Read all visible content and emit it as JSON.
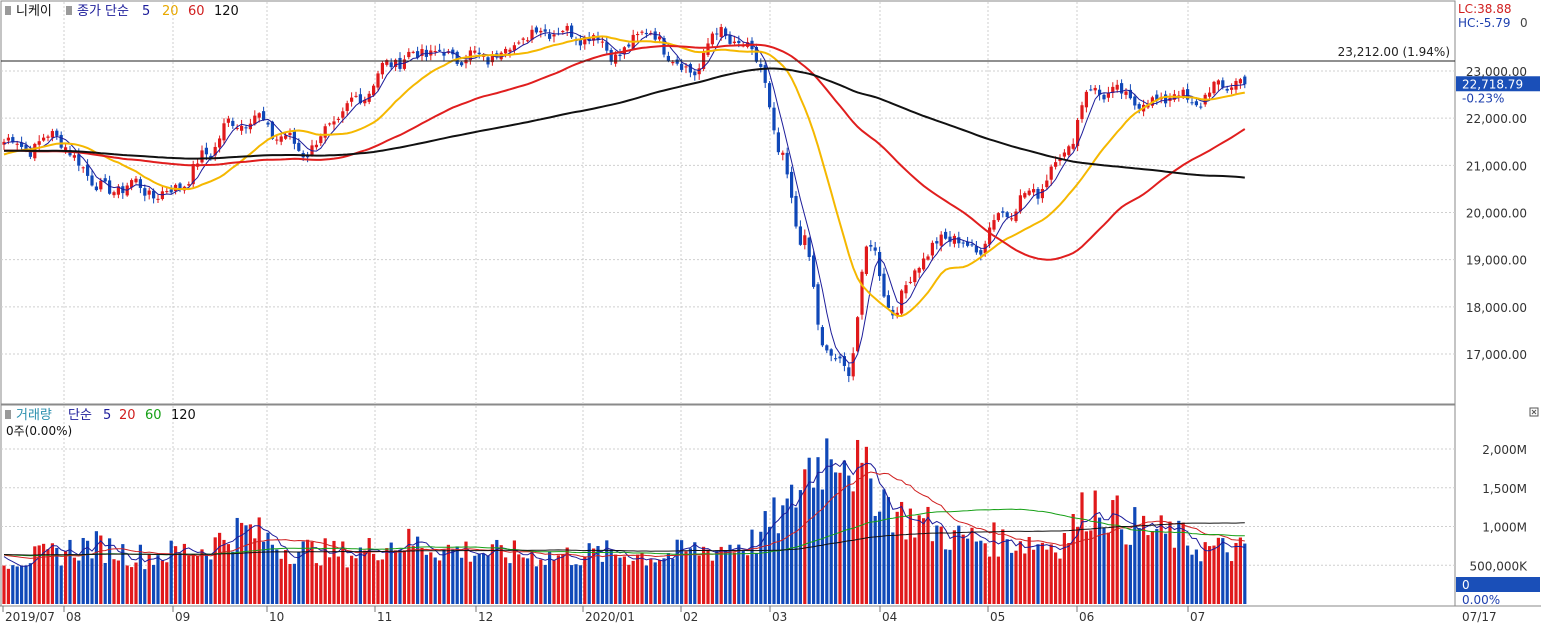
{
  "price_panel": {
    "name": "니케이",
    "ma_label": "종가 단순",
    "ma_periods": [
      "5",
      "20",
      "60",
      "120"
    ],
    "lc_label": "LC:38.88",
    "hc_label": "HC:-5.79",
    "right_cut_tick": "0",
    "ref_line_label": "23,212.00 (1.94%)",
    "current_label": "22,718.79",
    "change_label": "-0.23%"
  },
  "volume_panel": {
    "name": "거래량",
    "ma_label": "단순",
    "ma_periods": [
      "5",
      "20",
      "60",
      "120"
    ],
    "status": "0주(0.00%)",
    "current_label": "0",
    "change_label": "0.00%"
  },
  "date_axis": {
    "labels": [
      "2019/07",
      "08",
      "09",
      "10",
      "11",
      "12",
      "2020/01",
      "02",
      "03",
      "04",
      "05",
      "06",
      "07"
    ],
    "right_label": "07/17"
  },
  "colors": {
    "up": "#e0191b",
    "down": "#1048b8",
    "ma5": "#1d1d9a",
    "ma20": "#f5b800",
    "ma60": "#e01e1e",
    "ma120": "#111111",
    "vma20": "#d02020",
    "vma60": "#16a016",
    "vma120": "#111111",
    "badge": "#1a4fb8",
    "grid": "#cfcfcf"
  },
  "chart_data": [
    {
      "type": "candlestick",
      "title": "니케이",
      "y_ticks": [
        "23,000.00",
        "22,000.00",
        "21,000.00",
        "20,000.00",
        "19,000.00",
        "18,000.00",
        "17,000.00"
      ],
      "ylim": [
        16000,
        24000
      ],
      "reference_level": 23212.0,
      "current_value": 22718.79,
      "grid": true,
      "series": [
        {
          "name": "니케이",
          "kind": "candles",
          "close_path": [
            [
              "2019/07",
              21500
            ],
            [
              "2019/07",
              21350
            ],
            [
              "2019/07",
              21700
            ],
            [
              "08",
              21050
            ],
            [
              "08",
              20450
            ],
            [
              "08",
              20600
            ],
            [
              "08",
              20350
            ],
            [
              "09",
              20650
            ],
            [
              "09",
              21300
            ],
            [
              "09",
              21900
            ],
            [
              "09",
              22000
            ],
            [
              "10",
              21600
            ],
            [
              "10",
              21300
            ],
            [
              "10",
              21900
            ],
            [
              "10",
              22500
            ],
            [
              "11",
              23200
            ],
            [
              "11",
              23400
            ],
            [
              "11",
              23300
            ],
            [
              "12",
              23300
            ],
            [
              "12",
              23600
            ],
            [
              "12",
              23900
            ],
            [
              "12",
              23800
            ],
            [
              "2020/01",
              23700
            ],
            [
              "2020/01",
              23300
            ],
            [
              "2020/01",
              23900
            ],
            [
              "2020/01",
              23400
            ],
            [
              "02",
              22900
            ],
            [
              "02",
              23800
            ],
            [
              "02",
              23600
            ],
            [
              "02",
              23200
            ],
            [
              "03",
              21100
            ],
            [
              "03",
              19400
            ],
            [
              "03",
              17100
            ],
            [
              "03",
              16600
            ],
            [
              "03",
              19300
            ],
            [
              "04",
              17900
            ],
            [
              "04",
              19000
            ],
            [
              "04",
              19500
            ],
            [
              "04",
              19200
            ],
            [
              "05",
              20000
            ],
            [
              "05",
              20400
            ],
            [
              "05",
              21200
            ],
            [
              "06",
              22600
            ],
            [
              "06",
              22500
            ],
            [
              "06",
              22300
            ],
            [
              "06",
              22500
            ],
            [
              "07",
              22300
            ],
            [
              "07",
              22700
            ],
            [
              "07",
              22718.79
            ]
          ]
        },
        {
          "name": "5",
          "kind": "ma5"
        },
        {
          "name": "20",
          "kind": "ma20"
        },
        {
          "name": "60",
          "kind": "ma60"
        },
        {
          "name": "120",
          "kind": "ma120"
        }
      ]
    },
    {
      "type": "bar",
      "title": "거래량",
      "y_ticks": [
        "2,000M",
        "1,500M",
        "1,000M",
        "500,000K"
      ],
      "ylim": [
        0,
        2500
      ],
      "unit": "M",
      "series": [
        {
          "name": "거래량",
          "volume_path": [
            [
              "2019/07",
              600
            ],
            [
              "08",
              750
            ],
            [
              "08",
              620
            ],
            [
              "09",
              700
            ],
            [
              "09",
              950
            ],
            [
              "10",
              700
            ],
            [
              "10",
              650
            ],
            [
              "11",
              800
            ],
            [
              "11",
              700
            ],
            [
              "12",
              650
            ],
            [
              "12",
              620
            ],
            [
              "2020/01",
              650
            ],
            [
              "2020/01",
              620
            ],
            [
              "02",
              700
            ],
            [
              "02",
              780
            ],
            [
              "03",
              1150
            ],
            [
              "03",
              1800
            ],
            [
              "03",
              2100
            ],
            [
              "03",
              1600
            ],
            [
              "04",
              1100
            ],
            [
              "04",
              850
            ],
            [
              "05",
              820
            ],
            [
              "05",
              780
            ],
            [
              "06",
              1300
            ],
            [
              "06",
              1000
            ],
            [
              "06",
              900
            ],
            [
              "07",
              720
            ],
            [
              "07",
              700
            ]
          ]
        },
        {
          "name": "5"
        },
        {
          "name": "20"
        },
        {
          "name": "60"
        },
        {
          "name": "120"
        }
      ]
    }
  ]
}
